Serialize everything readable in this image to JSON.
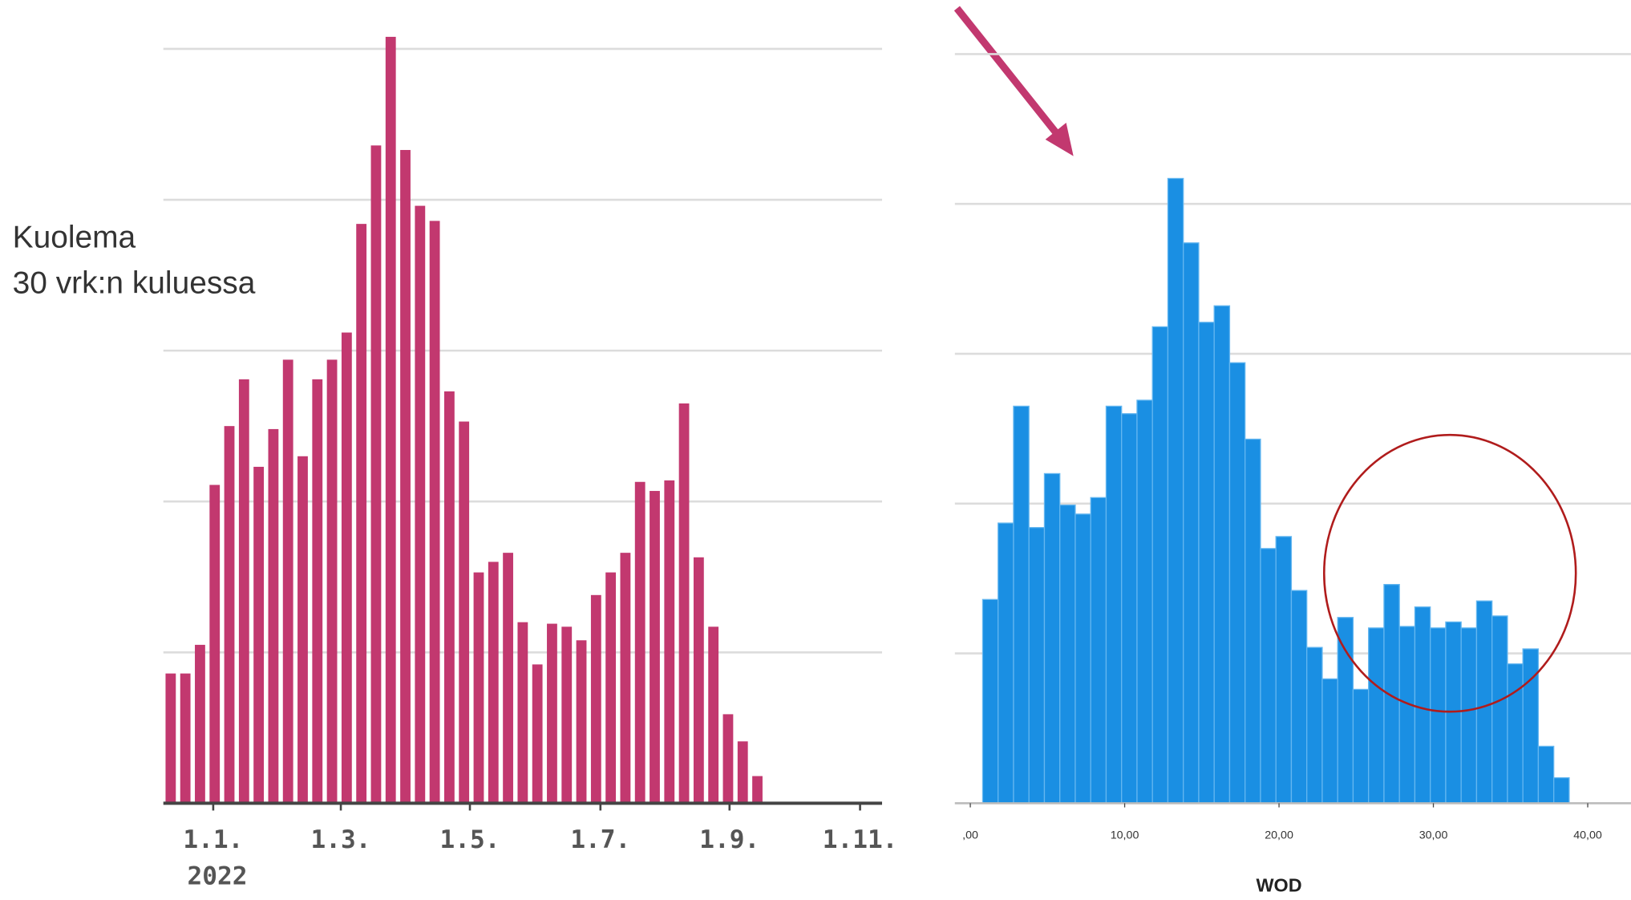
{
  "chart_data": [
    {
      "type": "bar",
      "color": "#c2386f",
      "ylabel": [
        "Kuolema",
        "30 vrk:n kuluessa"
      ],
      "x_sublabel": "2022",
      "values": [
        8.6,
        8.6,
        10.5,
        21.1,
        25,
        28.1,
        22.3,
        24.8,
        29.4,
        23,
        28.1,
        29.4,
        31.2,
        38.4,
        43.6,
        50.8,
        43.3,
        39.6,
        38.6,
        27.3,
        25.3,
        15.3,
        16,
        16.6,
        12,
        9.2,
        11.9,
        11.7,
        10.8,
        13.8,
        15.3,
        16.6,
        21.3,
        20.7,
        21.4,
        26.5,
        16.3,
        11.7,
        5.9,
        4.1,
        1.8
      ],
      "xlim": [
        -0.5,
        48.5
      ],
      "xticks": [
        {
          "value": 2.9,
          "label": "1.1."
        },
        {
          "value": 11.6,
          "label": "1.3."
        },
        {
          "value": 20.4,
          "label": "1.5."
        },
        {
          "value": 29.3,
          "label": "1.7."
        },
        {
          "value": 38.1,
          "label": "1.9."
        },
        {
          "value": 47.0,
          "label": "1.11."
        }
      ],
      "ylim": [
        0,
        52
      ],
      "yticks": [
        0,
        10,
        20,
        30,
        40,
        50
      ],
      "grid": true
    },
    {
      "type": "histogram",
      "color": "#1a8fe3",
      "xlabel": "WOD",
      "bins": [
        0.8,
        1.8,
        2.8,
        3.8,
        4.8,
        5.8,
        6.8,
        7.8,
        8.8,
        9.8,
        10.8,
        11.8,
        12.8,
        13.8,
        14.8,
        15.8,
        16.8,
        17.8,
        18.8,
        19.8,
        20.8,
        21.8,
        22.8,
        23.8,
        24.8,
        25.8,
        26.8,
        27.8,
        28.8,
        29.8,
        30.8,
        31.8,
        32.8,
        33.8,
        34.8,
        35.8,
        36.8,
        37.8,
        38.8
      ],
      "values": [
        136,
        187,
        265,
        184,
        220,
        199,
        193,
        204,
        265,
        260,
        269,
        318,
        417,
        374,
        321,
        332,
        294,
        243,
        170,
        178,
        142,
        104,
        83,
        124,
        76,
        117,
        146,
        118,
        131,
        117,
        121,
        117,
        135,
        125,
        93,
        103,
        38,
        17
      ],
      "xlim": [
        -1,
        42.8
      ],
      "xticks": [
        {
          "value": 0,
          "label": ",00"
        },
        {
          "value": 10,
          "label": "10,00"
        },
        {
          "value": 20,
          "label": "20,00"
        },
        {
          "value": 30,
          "label": "30,00"
        },
        {
          "value": 40,
          "label": "40,00"
        }
      ],
      "ylim": [
        0,
        500
      ],
      "yticks": [
        0,
        100,
        200,
        300,
        400,
        500
      ],
      "grid": true
    }
  ]
}
